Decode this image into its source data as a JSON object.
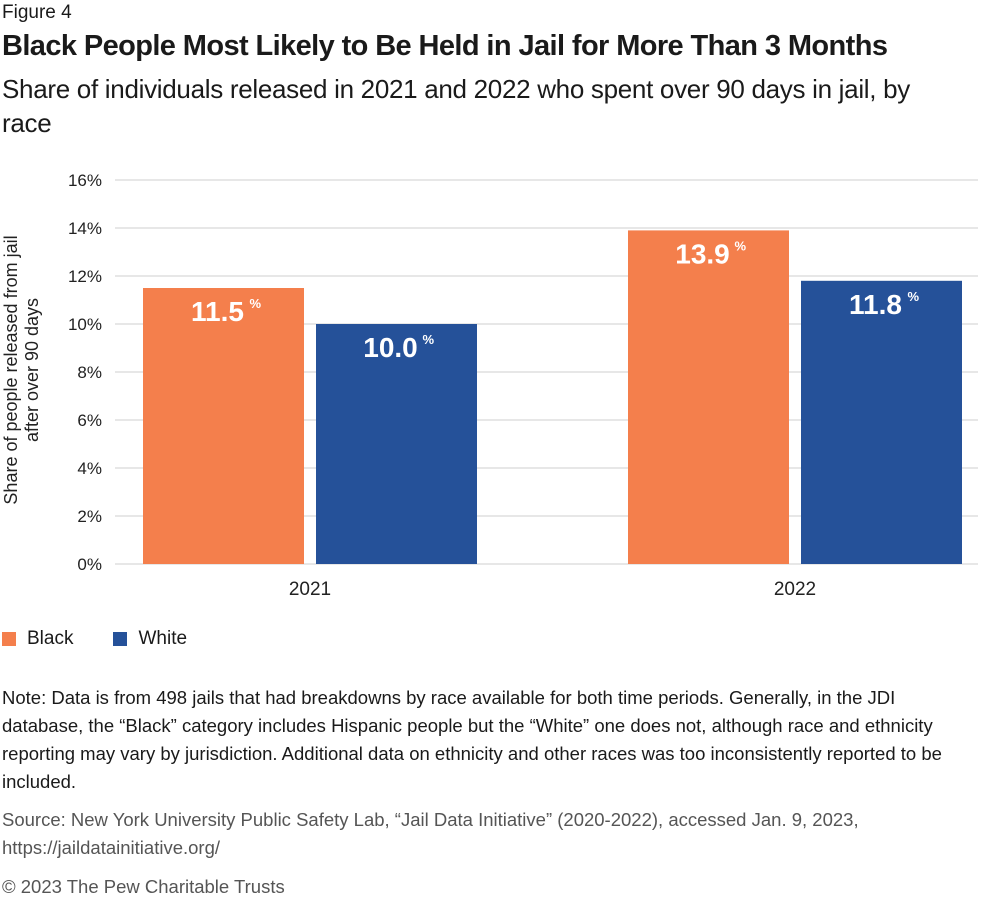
{
  "figure_label": "Figure 4",
  "title": "Black People Most Likely to Be Held in Jail for More Than 3 Months",
  "subtitle": "Share of individuals released in 2021 and 2022 who spent over 90 days in jail, by race",
  "colors": {
    "black": "#F47F4C",
    "white": "#255199",
    "grid": "#cfcfcf"
  },
  "chart_data": {
    "type": "bar",
    "categories": [
      "2021",
      "2022"
    ],
    "series": [
      {
        "name": "Black",
        "values": [
          11.5,
          13.9
        ],
        "labels": [
          "11.5",
          "13.9"
        ]
      },
      {
        "name": "White",
        "values": [
          10.0,
          11.8
        ],
        "labels": [
          "10.0",
          "11.8"
        ]
      }
    ],
    "ylim": [
      0,
      16
    ],
    "yticks": [
      0,
      2,
      4,
      6,
      8,
      10,
      12,
      14,
      16
    ],
    "ytick_labels": [
      "0%",
      "2%",
      "4%",
      "6%",
      "8%",
      "10%",
      "12%",
      "14%",
      "16%"
    ],
    "value_suffix": "%",
    "ylabel_line1": "Share of people released from jail",
    "ylabel_line2": "after over 90 days",
    "xlabel": "",
    "legend_position": "bottom-left"
  },
  "legend": {
    "black_label": "Black",
    "white_label": "White"
  },
  "note": "Note: Data is from 498 jails that had breakdowns by race available for both time periods. Generally, in the JDI database, the “Black” category includes Hispanic people but the “White” one does not, although race and ethnicity reporting may vary by jurisdiction. Additional data on ethnicity and other races was too inconsistently reported to be included.",
  "source": "Source: New York University Public Safety Lab, “Jail Data Initiative” (2020-2022), accessed Jan. 9, 2023, https://jaildatainitiative.org/",
  "copyright": "© 2023 The Pew Charitable Trusts"
}
